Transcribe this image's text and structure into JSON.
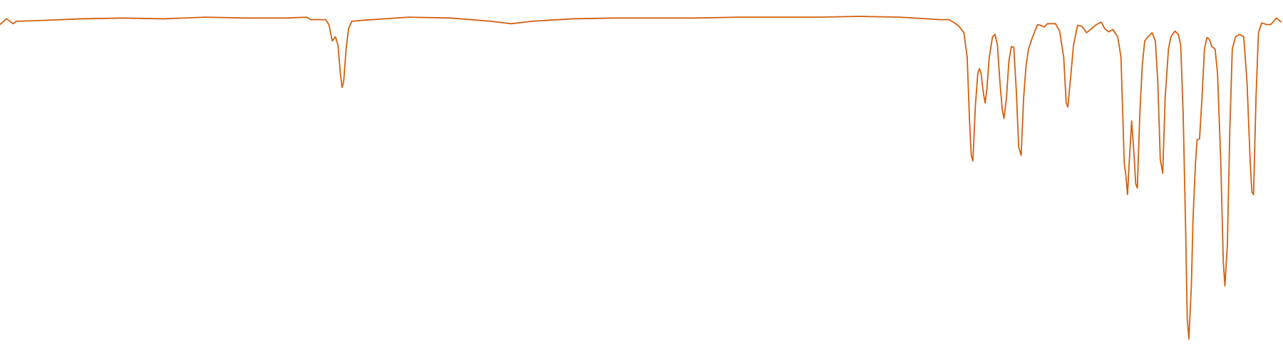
{
  "chart_data": {
    "type": "line",
    "x": [
      0,
      8,
      16,
      20,
      50,
      100,
      150,
      200,
      250,
      300,
      350,
      375,
      380,
      398,
      402,
      406,
      410,
      413,
      416,
      418,
      420,
      423,
      426,
      430,
      440,
      500,
      550,
      600,
      625,
      650,
      700,
      750,
      800,
      850,
      900,
      950,
      1000,
      1050,
      1100,
      1150,
      1160,
      1165,
      1172,
      1178,
      1182,
      1185,
      1187,
      1189,
      1192,
      1195,
      1197,
      1199,
      1202,
      1204,
      1206,
      1209,
      1213,
      1216,
      1219,
      1222,
      1225,
      1227,
      1230,
      1233,
      1236,
      1239,
      1242,
      1245,
      1248,
      1251,
      1254,
      1257,
      1262,
      1268,
      1272,
      1276,
      1280,
      1290,
      1295,
      1300,
      1303,
      1305,
      1308,
      1312,
      1317,
      1322,
      1328,
      1334,
      1340,
      1346,
      1350,
      1355,
      1360,
      1366,
      1370,
      1374,
      1376,
      1378,
      1380,
      1383,
      1386,
      1388,
      1390,
      1393,
      1396,
      1399,
      1403,
      1408,
      1412,
      1415,
      1418,
      1421,
      1424,
      1428,
      1431,
      1436,
      1440,
      1443,
      1446,
      1449,
      1451,
      1453,
      1456,
      1458,
      1461,
      1463,
      1466,
      1469,
      1472,
      1475,
      1478,
      1481,
      1485,
      1488,
      1492,
      1495,
      1497,
      1500,
      1503,
      1506,
      1510,
      1515,
      1520,
      1524,
      1528,
      1530,
      1532,
      1535,
      1538,
      1542,
      1548,
      1553,
      1560,
      1566
    ],
    "series": [
      {
        "color": "#d2600f",
        "values": [
          97.5,
          99.25,
          97.75,
          98.5,
          98.75,
          99.25,
          99.5,
          99.25,
          99.75,
          99.5,
          99.5,
          99.75,
          99,
          99,
          97.5,
          92.5,
          93.75,
          91.25,
          82.5,
          78.25,
          80,
          90,
          96.25,
          98.5,
          98.75,
          99.75,
          99.5,
          98.5,
          97.75,
          98.5,
          99.25,
          99.5,
          99.5,
          99.5,
          99.75,
          99.75,
          99.75,
          100,
          99.75,
          99,
          99,
          98.25,
          97,
          95,
          87.5,
          67.5,
          57.5,
          55.75,
          72.5,
          82.5,
          84,
          82.5,
          76.25,
          73.5,
          77.5,
          87.5,
          93.75,
          94.5,
          91.25,
          80,
          71.25,
          68.75,
          75,
          86.25,
          90.75,
          90.5,
          77.5,
          60,
          57.5,
          75,
          85,
          90,
          93.75,
          97.5,
          97.25,
          96.75,
          97.75,
          97.75,
          95.5,
          87.5,
          73.75,
          72.25,
          80,
          91.25,
          97.25,
          97,
          95,
          96.25,
          97.5,
          98.25,
          96.25,
          95.25,
          96,
          93.75,
          87.5,
          55,
          51.25,
          45.5,
          55,
          68,
          57.5,
          48.75,
          47.5,
          70,
          85,
          92.5,
          93.75,
          95,
          92.5,
          80,
          56.25,
          52,
          75,
          90,
          93.75,
          95.5,
          94.5,
          91.25,
          70,
          35,
          7.5,
          1.25,
          17.5,
          37.5,
          55,
          62.25,
          62.5,
          75,
          90,
          93.5,
          93,
          90.75,
          90,
          82.5,
          55,
          25,
          17.5,
          30,
          65,
          90,
          93.75,
          94.5,
          93.75,
          80,
          55,
          46.25,
          45.5,
          75,
          95,
          98,
          97.5,
          97.5,
          99.5,
          98.25
        ]
      }
    ],
    "xlim": [
      0,
      1568
    ],
    "ylim": [
      0,
      100
    ]
  }
}
